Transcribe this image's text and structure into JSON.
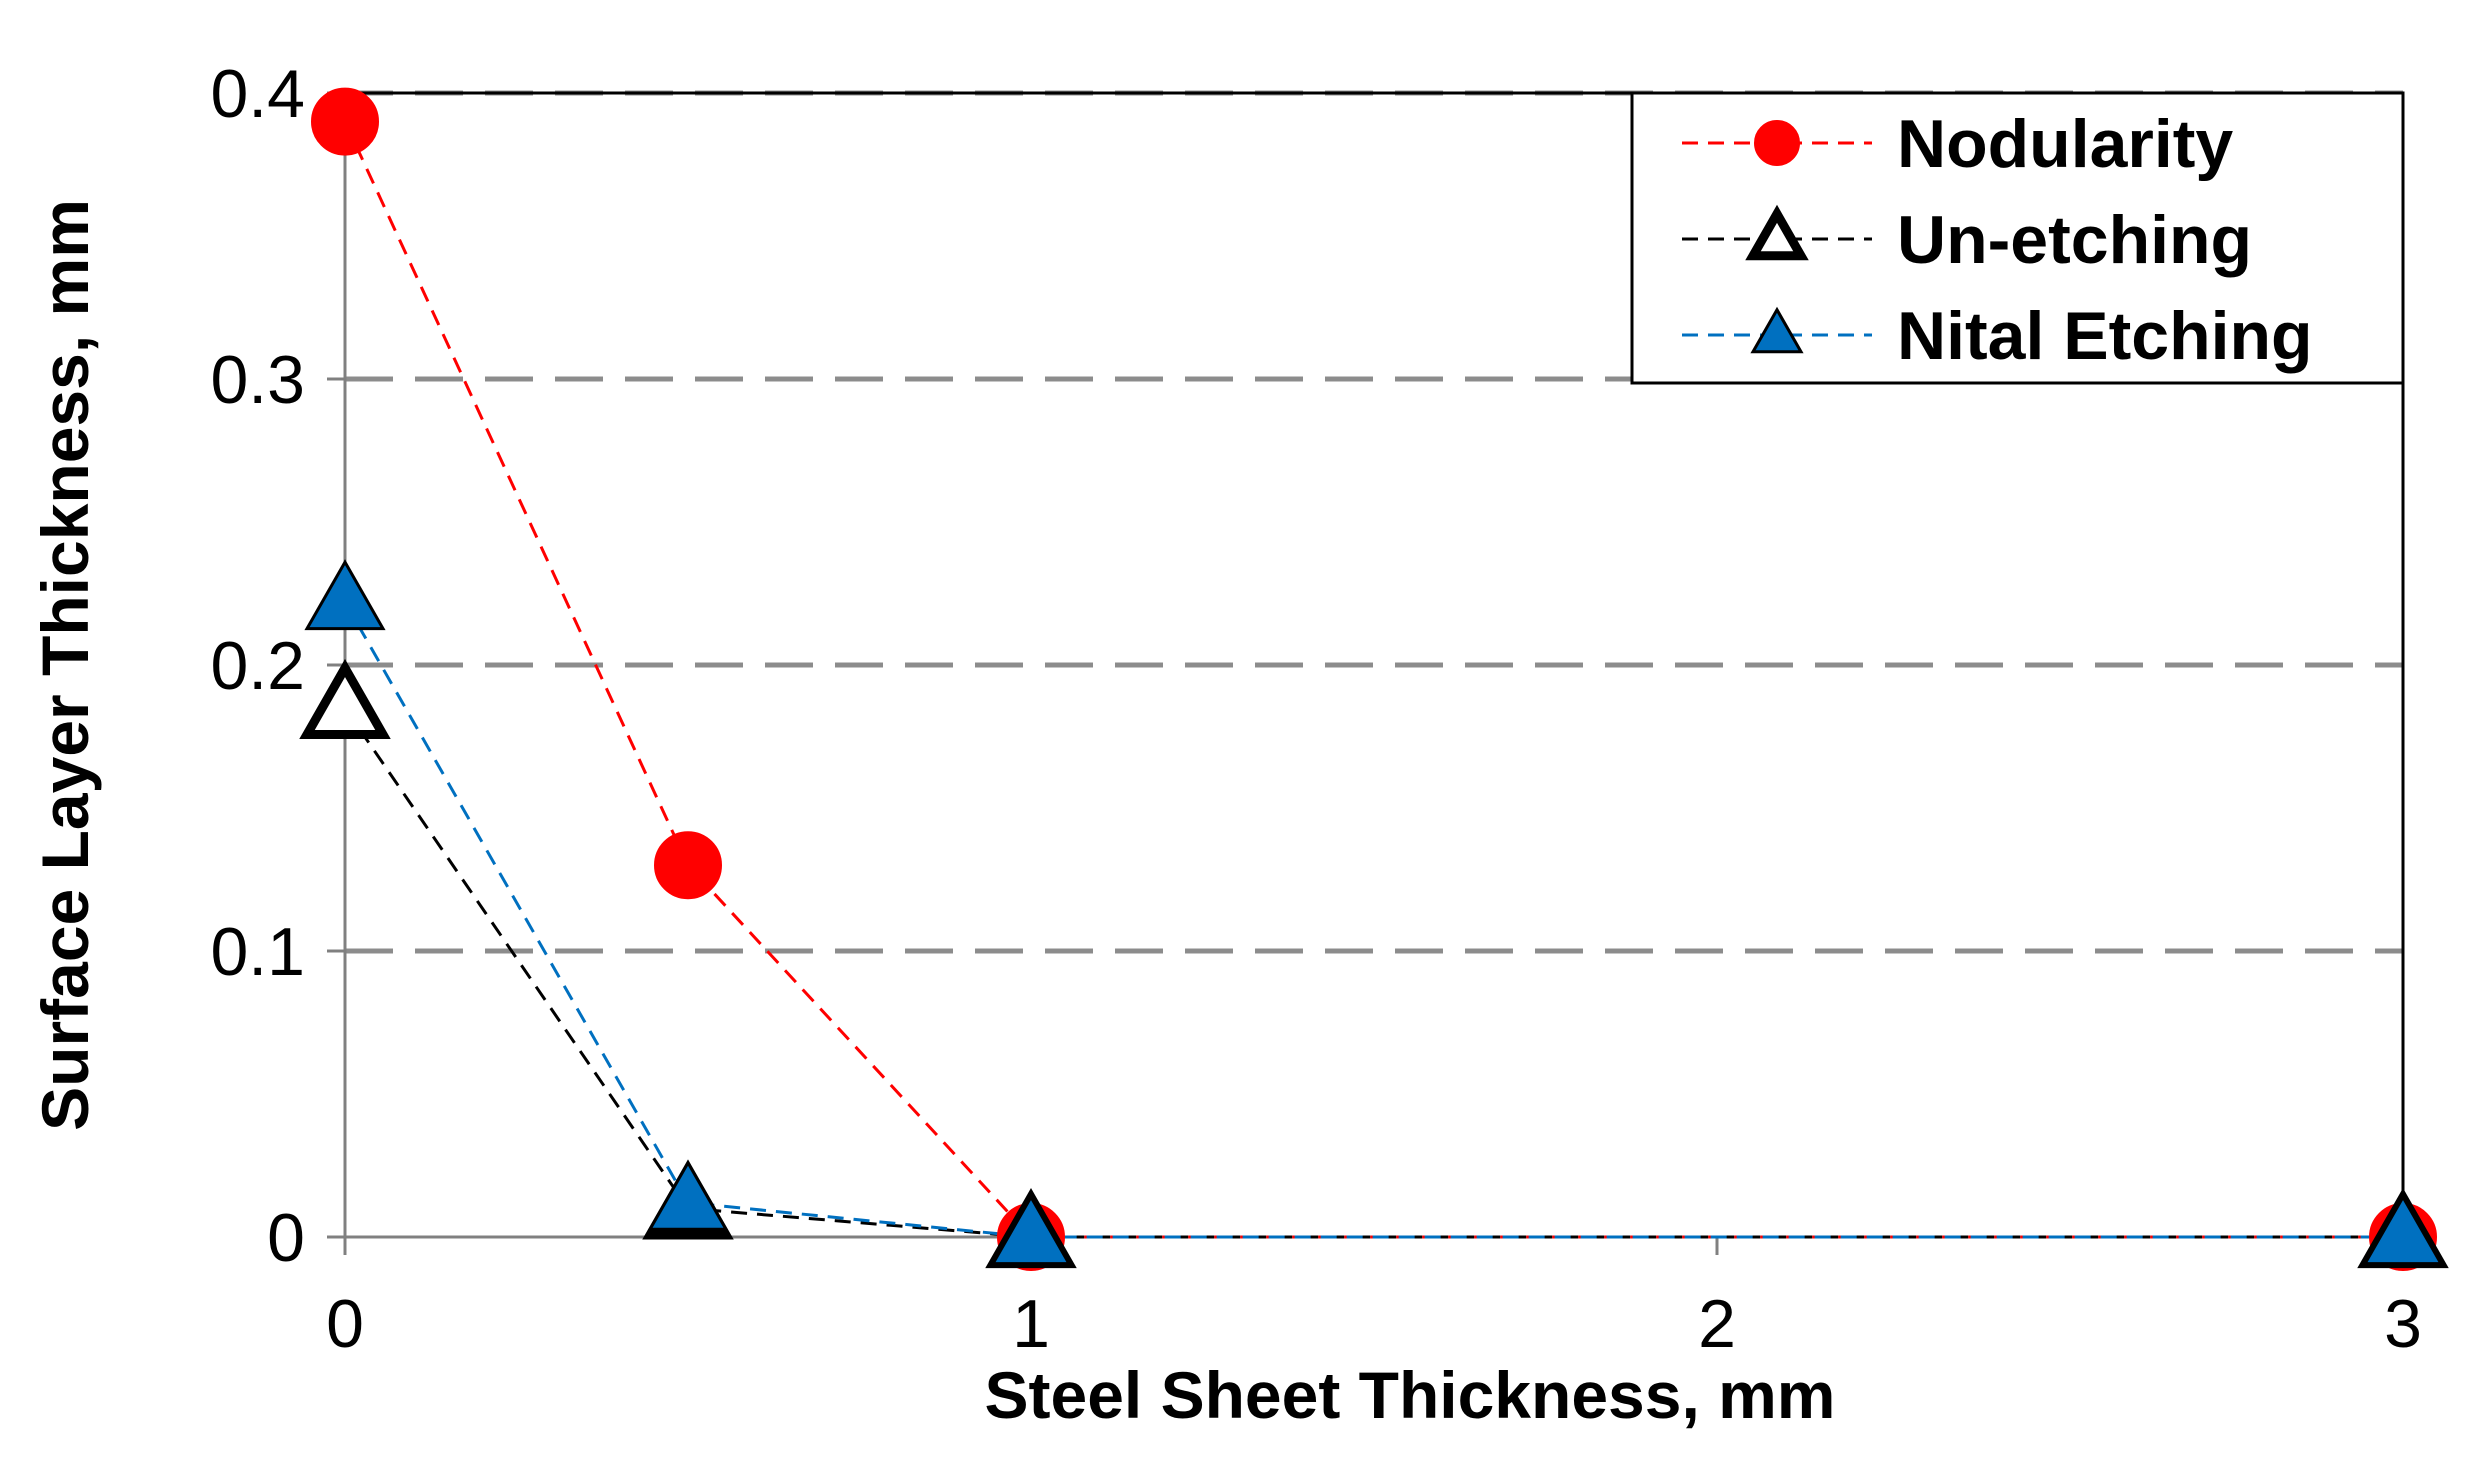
{
  "chart_data": {
    "type": "line",
    "title": "",
    "xlabel": "Steel Sheet Thickness, mm",
    "ylabel": "Surface Layer Thickness, mm",
    "xlim": [
      0,
      3
    ],
    "ylim": [
      0,
      0.4
    ],
    "x_ticks": [
      0,
      1,
      2,
      3
    ],
    "x_tick_labels": [
      "0",
      "1",
      "2",
      "3"
    ],
    "y_ticks": [
      0,
      0.1,
      0.2,
      0.3,
      0.4
    ],
    "y_tick_labels": [
      "0",
      "0.1",
      "0.2",
      "0.3",
      "0.4"
    ],
    "grid": "horizontal dashed",
    "legend_position": "top-right",
    "series": [
      {
        "name": "Nodularity",
        "color": "#ff0000",
        "marker": "circle-filled",
        "x": [
          0,
          0.5,
          1,
          3
        ],
        "y": [
          0.39,
          0.13,
          0,
          0
        ]
      },
      {
        "name": "Un-etching",
        "color": "#000000",
        "marker": "triangle-open",
        "x": [
          0,
          0.5,
          1,
          3
        ],
        "y": [
          0.185,
          0.01,
          0,
          0
        ]
      },
      {
        "name": "Nital Etching",
        "color": "#0070c0",
        "marker": "triangle-filled",
        "x": [
          0,
          0.5,
          1,
          3
        ],
        "y": [
          0.222,
          0.012,
          0,
          0
        ]
      }
    ]
  }
}
